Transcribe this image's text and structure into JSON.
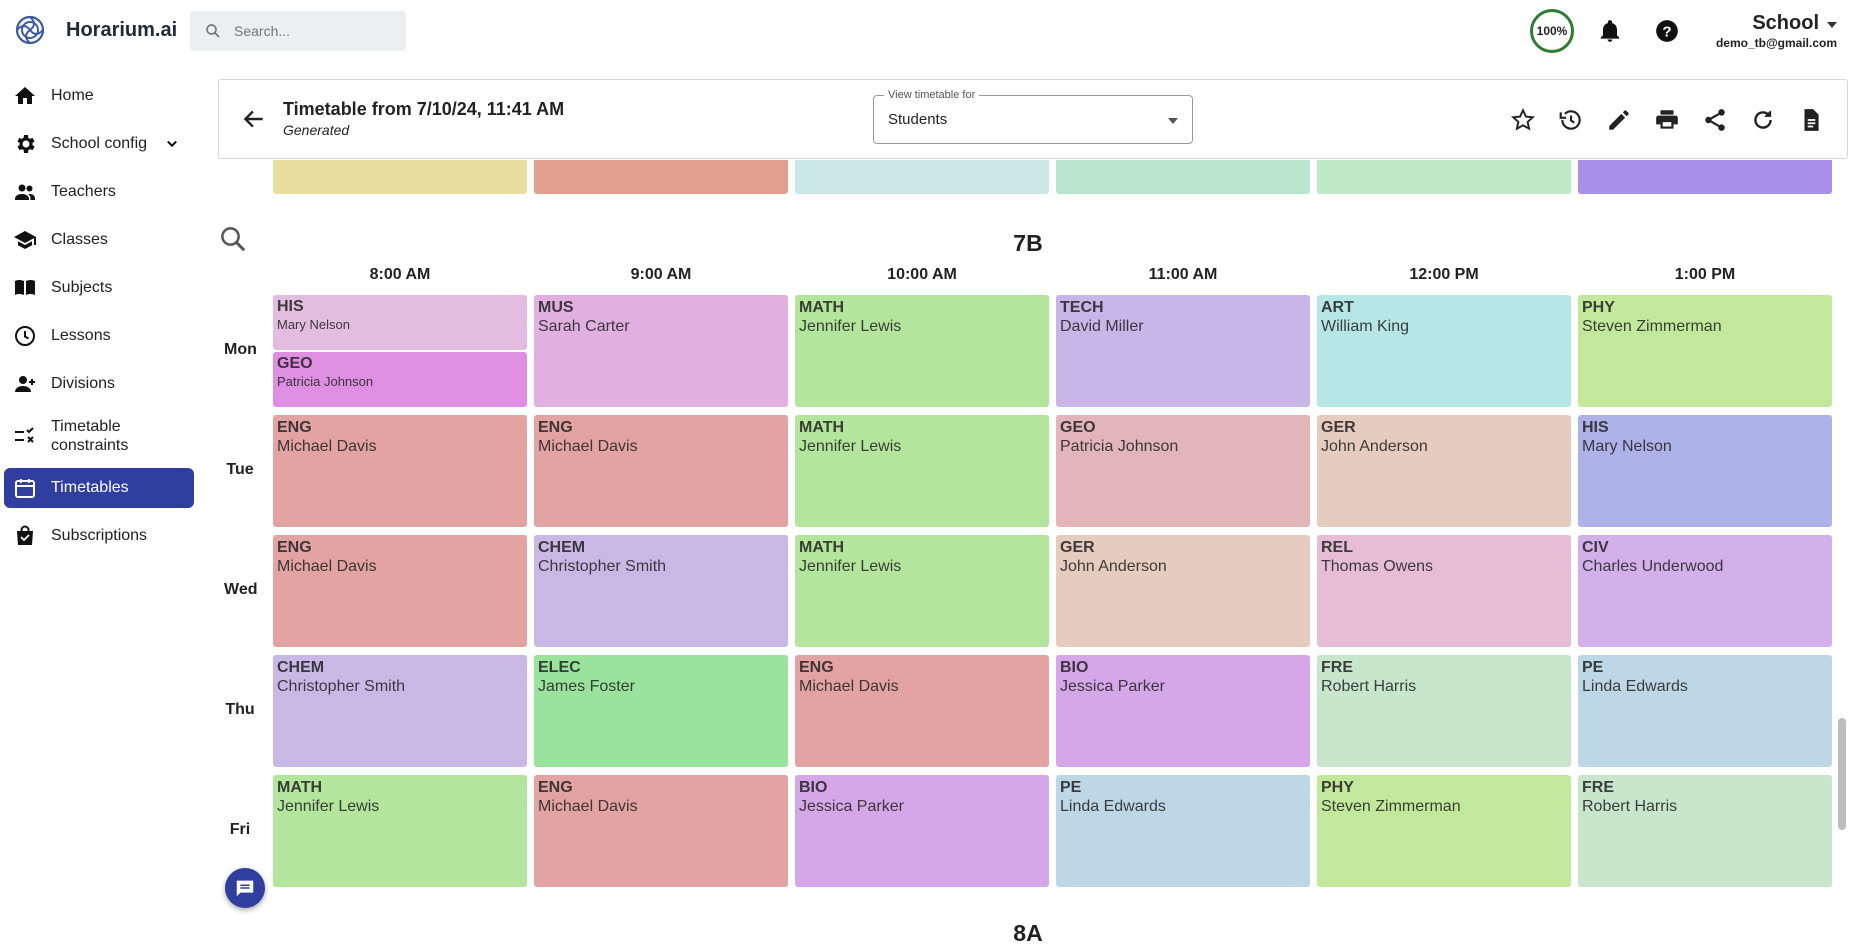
{
  "app": {
    "name": "Horarium.ai"
  },
  "search": {
    "placeholder": "Search..."
  },
  "topbar": {
    "progress": "100%",
    "account_name": "School",
    "account_email": "demo_tb@gmail.com"
  },
  "sidebar": {
    "items": [
      {
        "label": "Home",
        "icon": "home-icon"
      },
      {
        "label": "School config",
        "icon": "gear-icon"
      },
      {
        "label": "Teachers",
        "icon": "people-icon"
      },
      {
        "label": "Classes",
        "icon": "school-icon"
      },
      {
        "label": "Subjects",
        "icon": "book-icon"
      },
      {
        "label": "Lessons",
        "icon": "clock-icon"
      },
      {
        "label": "Divisions",
        "icon": "person-add-icon"
      },
      {
        "label": "Timetable constraints",
        "icon": "rule-icon"
      },
      {
        "label": "Timetables",
        "icon": "calendar-icon"
      },
      {
        "label": "Subscriptions",
        "icon": "bag-icon"
      }
    ]
  },
  "header": {
    "title": "Timetable from 7/10/24, 11:41 AM",
    "subtitle": "Generated",
    "view_label": "View timetable for",
    "view_value": "Students"
  },
  "colors": {
    "accent": "#303f9f",
    "progress_ring": "#2e7d32",
    "HIS_top": "#e2bddf",
    "GEO_bottom": "#df8fe2",
    "MUS": "#e1b0e0",
    "MATH": "#b3e59c",
    "TECH": "#c9b5e8",
    "ART": "#b6e6e5",
    "PHY": "#c1e89b",
    "ENG": "#e2a3a2",
    "GEO": "#e2b5b8",
    "GER": "#e6cbbf",
    "HIS": "#adb3e8",
    "CHEM": "#c9b8e6",
    "REL": "#e6bdd4",
    "CIV": "#d3b0ea",
    "ELEC": "#99e39d",
    "BIO": "#d6a7e8",
    "FRE": "#c8e6cc",
    "PE": "#bed7e6"
  },
  "timetable": {
    "class_name": "7B",
    "next_class_name": "8A",
    "times": [
      "8:00 AM",
      "9:00 AM",
      "10:00 AM",
      "11:00 AM",
      "12:00 PM",
      "1:00 PM"
    ],
    "days": [
      "Mon",
      "Tue",
      "Wed",
      "Thu",
      "Fri"
    ],
    "rows": [
      [
        {
          "split": true,
          "top": {
            "subject": "HIS",
            "teacher": "Mary Nelson",
            "color": "#e2bddf"
          },
          "bottom": {
            "subject": "GEO",
            "teacher": "Patricia Johnson",
            "color": "#df8fe2"
          }
        },
        {
          "subject": "MUS",
          "teacher": "Sarah Carter",
          "color": "#e1b0e0"
        },
        {
          "subject": "MATH",
          "teacher": "Jennifer Lewis",
          "color": "#b3e59c"
        },
        {
          "subject": "TECH",
          "teacher": "David Miller",
          "color": "#c9b5e8"
        },
        {
          "subject": "ART",
          "teacher": "William King",
          "color": "#b6e6e5"
        },
        {
          "subject": "PHY",
          "teacher": "Steven Zimmerman",
          "color": "#c1e89b"
        }
      ],
      [
        {
          "subject": "ENG",
          "teacher": "Michael Davis",
          "color": "#e2a3a2"
        },
        {
          "subject": "ENG",
          "teacher": "Michael Davis",
          "color": "#e2a3a2"
        },
        {
          "subject": "MATH",
          "teacher": "Jennifer Lewis",
          "color": "#b3e59c"
        },
        {
          "subject": "GEO",
          "teacher": "Patricia Johnson",
          "color": "#e2b5b8"
        },
        {
          "subject": "GER",
          "teacher": "John Anderson",
          "color": "#e6cbbf"
        },
        {
          "subject": "HIS",
          "teacher": "Mary Nelson",
          "color": "#adb3e8"
        }
      ],
      [
        {
          "subject": "ENG",
          "teacher": "Michael Davis",
          "color": "#e2a3a2"
        },
        {
          "subject": "CHEM",
          "teacher": "Christopher Smith",
          "color": "#c9b8e6"
        },
        {
          "subject": "MATH",
          "teacher": "Jennifer Lewis",
          "color": "#b3e59c"
        },
        {
          "subject": "GER",
          "teacher": "John Anderson",
          "color": "#e6cbbf"
        },
        {
          "subject": "REL",
          "teacher": "Thomas Owens",
          "color": "#e6bdd4"
        },
        {
          "subject": "CIV",
          "teacher": "Charles Underwood",
          "color": "#d3b0ea"
        }
      ],
      [
        {
          "subject": "CHEM",
          "teacher": "Christopher Smith",
          "color": "#c9b8e6"
        },
        {
          "subject": "ELEC",
          "teacher": "James Foster",
          "color": "#99e39d"
        },
        {
          "subject": "ENG",
          "teacher": "Michael Davis",
          "color": "#e2a3a2"
        },
        {
          "subject": "BIO",
          "teacher": "Jessica Parker",
          "color": "#d6a7e8"
        },
        {
          "subject": "FRE",
          "teacher": "Robert Harris",
          "color": "#c8e6cc"
        },
        {
          "subject": "PE",
          "teacher": "Linda Edwards",
          "color": "#bed7e6"
        }
      ],
      [
        {
          "subject": "MATH",
          "teacher": "Jennifer Lewis",
          "color": "#b3e59c"
        },
        {
          "subject": "ENG",
          "teacher": "Michael Davis",
          "color": "#e2a3a2"
        },
        {
          "subject": "BIO",
          "teacher": "Jessica Parker",
          "color": "#d6a7e8"
        },
        {
          "subject": "PE",
          "teacher": "Linda Edwards",
          "color": "#bed7e6"
        },
        {
          "subject": "PHY",
          "teacher": "Steven Zimmerman",
          "color": "#c1e89b"
        },
        {
          "subject": "FRE",
          "teacher": "Robert Harris",
          "color": "#c8e6cc"
        }
      ]
    ],
    "previous_row_colors": [
      "#e8df9f",
      "#e29f8f",
      "#cbe7e7",
      "#b9e6cc",
      "#bfe8c6",
      "#a98fe7"
    ]
  }
}
